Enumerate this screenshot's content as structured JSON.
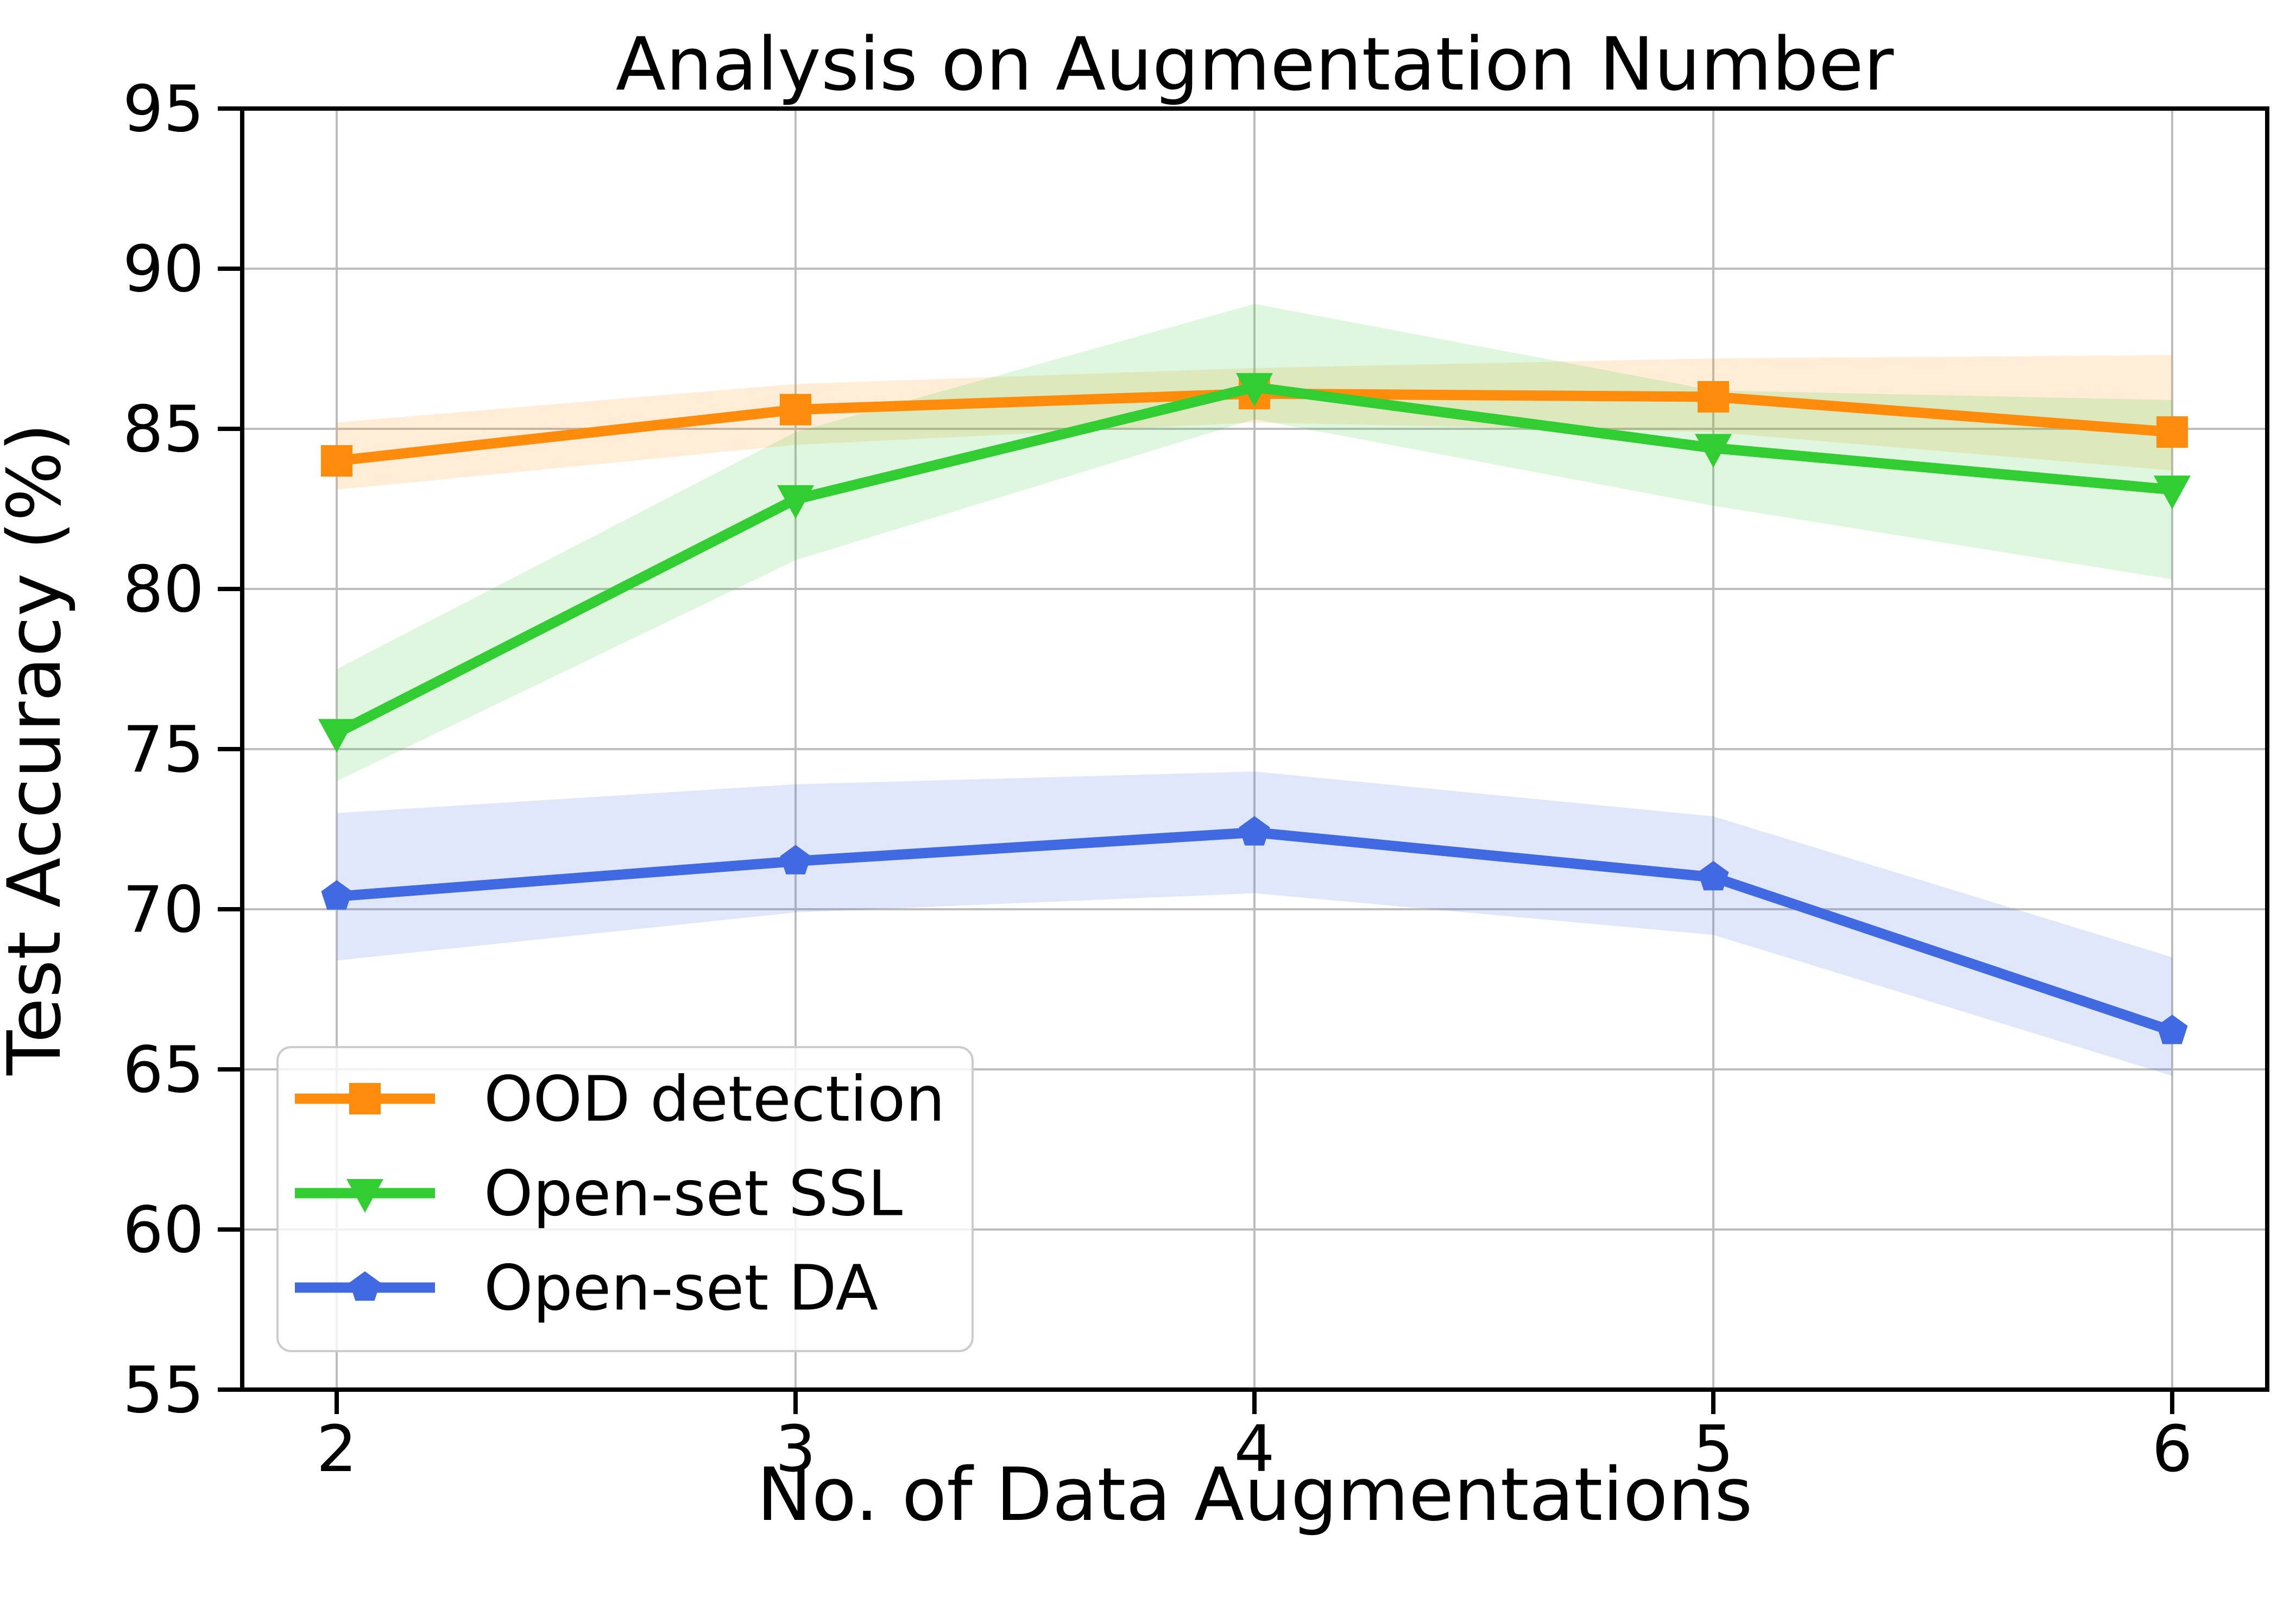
{
  "figure": {
    "background": "#ffffff"
  },
  "chart_data": {
    "type": "line",
    "title": "Analysis on Augmentation Number",
    "xlabel": "No. of Data Augmentations",
    "ylabel": "Test Accuracy (%)",
    "x": [
      2,
      3,
      4,
      5,
      6
    ],
    "xticks": [
      "2",
      "3",
      "4",
      "5",
      "6"
    ],
    "yticks": [
      "55",
      "60",
      "65",
      "70",
      "75",
      "80",
      "85",
      "90",
      "95"
    ],
    "ytick_values": [
      55,
      60,
      65,
      70,
      75,
      80,
      85,
      90,
      95
    ],
    "xlim": [
      1.79,
      6.21
    ],
    "ylim": [
      55,
      95
    ],
    "grid": true,
    "grid_color": "#bdbdbd",
    "spine_color": "#000000",
    "band_alpha": 0.16,
    "legend_position": "lower left",
    "legend_border_color": "#cccccc",
    "series": [
      {
        "name": "OOD detection",
        "color": "#fd8c0c",
        "marker": "square",
        "values": [
          84.0,
          85.6,
          86.1,
          86.0,
          84.9
        ],
        "band_lower": [
          83.1,
          84.5,
          85.2,
          84.9,
          83.7
        ],
        "band_upper": [
          85.2,
          86.4,
          86.9,
          87.2,
          87.3
        ]
      },
      {
        "name": "Open-set SSL",
        "color": "#32cd32",
        "marker": "triangle-down",
        "values": [
          75.5,
          82.8,
          86.3,
          84.4,
          83.1
        ],
        "band_lower": [
          74.0,
          80.9,
          85.3,
          82.6,
          80.3
        ],
        "band_upper": [
          77.5,
          84.9,
          88.9,
          86.2,
          85.9
        ]
      },
      {
        "name": "Open-set DA",
        "color": "#4169e1",
        "marker": "pentagon",
        "values": [
          70.4,
          71.5,
          72.4,
          71.0,
          66.2
        ],
        "band_lower": [
          68.4,
          69.9,
          70.5,
          69.2,
          64.8
        ],
        "band_upper": [
          73.0,
          73.9,
          74.3,
          72.9,
          68.5
        ]
      }
    ]
  }
}
